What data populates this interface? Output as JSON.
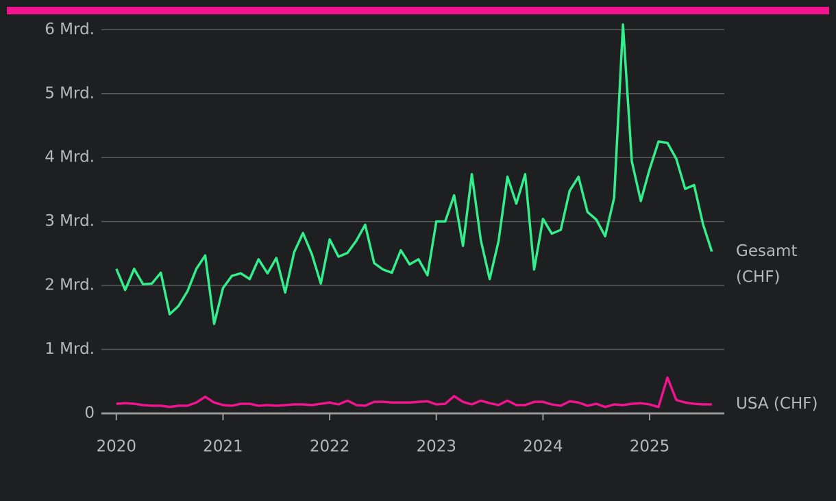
{
  "chart_data": {
    "type": "line",
    "x": [
      2020,
      2020.083,
      2020.167,
      2020.25,
      2020.333,
      2020.417,
      2020.5,
      2020.583,
      2020.667,
      2020.75,
      2020.833,
      2020.917,
      2021,
      2021.083,
      2021.167,
      2021.25,
      2021.333,
      2021.417,
      2021.5,
      2021.583,
      2021.667,
      2021.75,
      2021.833,
      2021.917,
      2022,
      2022.083,
      2022.167,
      2022.25,
      2022.333,
      2022.417,
      2022.5,
      2022.583,
      2022.667,
      2022.75,
      2022.833,
      2022.917,
      2023,
      2023.083,
      2023.167,
      2023.25,
      2023.333,
      2023.417,
      2023.5,
      2023.583,
      2023.667,
      2023.75,
      2023.833,
      2023.917,
      2024,
      2024.083,
      2024.167,
      2024.25,
      2024.333,
      2024.417,
      2024.5,
      2024.583,
      2024.667,
      2024.75,
      2024.833,
      2024.917,
      2025,
      2025.083,
      2025.167,
      2025.25,
      2025.333,
      2025.417,
      2025.5,
      2025.583
    ],
    "series": [
      {
        "name": "Gesamt (CHF)",
        "color": "#33ee8c",
        "values": [
          2.26,
          1.93,
          2.26,
          2.02,
          2.03,
          2.2,
          1.55,
          1.68,
          1.91,
          2.26,
          2.47,
          1.4,
          1.96,
          2.15,
          2.19,
          2.1,
          2.41,
          2.19,
          2.43,
          1.89,
          2.52,
          2.82,
          2.49,
          2.03,
          2.72,
          2.45,
          2.51,
          2.7,
          2.95,
          2.35,
          2.25,
          2.2,
          2.55,
          2.33,
          2.41,
          2.16,
          3.0,
          3.0,
          3.41,
          2.62,
          3.74,
          2.71,
          2.1,
          2.69,
          3.7,
          3.28,
          3.74,
          2.25,
          3.04,
          2.81,
          2.87,
          3.48,
          3.7,
          3.15,
          3.03,
          2.77,
          3.37,
          6.08,
          3.94,
          3.32,
          3.82,
          4.25,
          4.23,
          3.98,
          3.51,
          3.57,
          2.96,
          2.53
        ]
      },
      {
        "name": "USA (CHF)",
        "color": "#f0158f",
        "values": [
          0.15,
          0.16,
          0.15,
          0.13,
          0.12,
          0.12,
          0.1,
          0.12,
          0.12,
          0.17,
          0.26,
          0.17,
          0.13,
          0.12,
          0.15,
          0.15,
          0.12,
          0.13,
          0.12,
          0.13,
          0.14,
          0.14,
          0.13,
          0.15,
          0.17,
          0.14,
          0.2,
          0.13,
          0.12,
          0.18,
          0.18,
          0.17,
          0.17,
          0.17,
          0.18,
          0.19,
          0.14,
          0.15,
          0.27,
          0.18,
          0.14,
          0.2,
          0.16,
          0.13,
          0.2,
          0.13,
          0.13,
          0.18,
          0.18,
          0.14,
          0.12,
          0.19,
          0.17,
          0.12,
          0.15,
          0.1,
          0.14,
          0.13,
          0.15,
          0.16,
          0.14,
          0.1,
          0.56,
          0.21,
          0.17,
          0.15,
          0.14,
          0.14
        ]
      }
    ],
    "xlim": [
      2019.86,
      2025.7
    ],
    "xticks": [
      2020,
      2021,
      2022,
      2023,
      2024,
      2025
    ],
    "ylim": [
      0,
      6.1
    ],
    "yticks": [
      0,
      {
        "value": 1,
        "label": "1 Mrd."
      },
      {
        "value": 2,
        "label": "2 Mrd."
      },
      {
        "value": 3,
        "label": "3 Mrd."
      },
      {
        "value": 4,
        "label": "4 Mrd."
      },
      {
        "value": 5,
        "label": "5 Mrd."
      },
      {
        "value": 6,
        "label": "6 Mrd."
      }
    ],
    "grid": true
  }
}
